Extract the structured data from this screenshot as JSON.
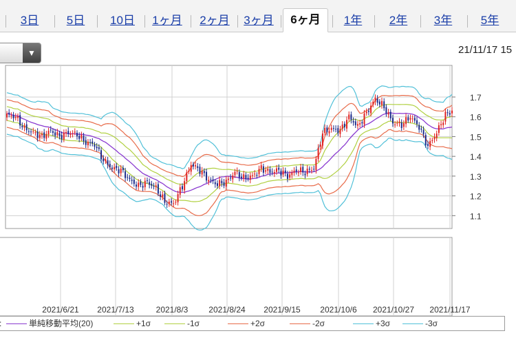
{
  "tabs": [
    {
      "label": "3日",
      "active": false
    },
    {
      "label": "5日",
      "active": false
    },
    {
      "label": "10日",
      "active": false
    },
    {
      "label": "1ヶ月",
      "active": false
    },
    {
      "label": "2ヶ月",
      "active": false
    },
    {
      "label": "3ヶ月",
      "active": false
    },
    {
      "label": "6ヶ月",
      "active": true
    },
    {
      "label": "1年",
      "active": false
    },
    {
      "label": "2年",
      "active": false
    },
    {
      "label": "3年",
      "active": false
    },
    {
      "label": "5年",
      "active": false
    }
  ],
  "dropdown": {
    "value": "",
    "icon": "caret-down-icon"
  },
  "timestamp": "21/11/17 15",
  "chart_data": {
    "type": "candlestick",
    "x_tick_labels": [
      "2021/6/21",
      "2021/7/13",
      "2021/8/3",
      "2021/8/24",
      "2021/9/15",
      "2021/10/6",
      "2021/10/27",
      "2021/11/17"
    ],
    "y_tick_labels": [
      "1.7",
      "1.6",
      "1.5",
      "1.4",
      "1.3",
      "1.2",
      "1.1"
    ],
    "y_ticks": [
      1.7,
      1.6,
      1.5,
      1.4,
      1.3,
      1.2,
      1.1
    ],
    "ylim": [
      1.035,
      1.86
    ],
    "grid": true,
    "up_color": "#e02020",
    "down_color": "#1a2a8a",
    "close_keys": [
      [
        0,
        1.61
      ],
      [
        4,
        1.6
      ],
      [
        8,
        1.54
      ],
      [
        12,
        1.52
      ],
      [
        16,
        1.5
      ],
      [
        20,
        1.53
      ],
      [
        24,
        1.5
      ],
      [
        28,
        1.52
      ],
      [
        32,
        1.51
      ],
      [
        36,
        1.47
      ],
      [
        40,
        1.46
      ],
      [
        44,
        1.38
      ],
      [
        48,
        1.34
      ],
      [
        52,
        1.33
      ],
      [
        56,
        1.28
      ],
      [
        60,
        1.25
      ],
      [
        64,
        1.27
      ],
      [
        68,
        1.24
      ],
      [
        72,
        1.17
      ],
      [
        76,
        1.16
      ],
      [
        80,
        1.25
      ],
      [
        84,
        1.36
      ],
      [
        88,
        1.33
      ],
      [
        92,
        1.28
      ],
      [
        96,
        1.26
      ],
      [
        100,
        1.27
      ],
      [
        104,
        1.32
      ],
      [
        108,
        1.29
      ],
      [
        112,
        1.3
      ],
      [
        116,
        1.34
      ],
      [
        120,
        1.32
      ],
      [
        124,
        1.33
      ],
      [
        128,
        1.3
      ],
      [
        132,
        1.33
      ],
      [
        136,
        1.32
      ],
      [
        140,
        1.34
      ],
      [
        144,
        1.52
      ],
      [
        148,
        1.54
      ],
      [
        152,
        1.53
      ],
      [
        156,
        1.6
      ],
      [
        160,
        1.55
      ],
      [
        164,
        1.62
      ],
      [
        168,
        1.69
      ],
      [
        172,
        1.65
      ],
      [
        176,
        1.57
      ],
      [
        180,
        1.56
      ],
      [
        184,
        1.6
      ],
      [
        188,
        1.55
      ],
      [
        192,
        1.45
      ],
      [
        196,
        1.52
      ],
      [
        200,
        1.61
      ],
      [
        203,
        1.63
      ]
    ],
    "band_offsets_sigma": [
      -3,
      -2,
      -1,
      1,
      2,
      3
    ],
    "legend": [
      {
        "name": "単純移動平均(20)",
        "color": "#8a3ad0"
      },
      {
        "name": "+1σ",
        "color": "#b0d040"
      },
      {
        "name": "-1σ",
        "color": "#b0d040"
      },
      {
        "name": "+2σ",
        "color": "#e86a48"
      },
      {
        "name": "-2σ",
        "color": "#e86a48"
      },
      {
        "name": "+3σ",
        "color": "#50c0d8"
      },
      {
        "name": "-3σ",
        "color": "#50c0d8"
      }
    ],
    "legend_prefix": ":"
  }
}
